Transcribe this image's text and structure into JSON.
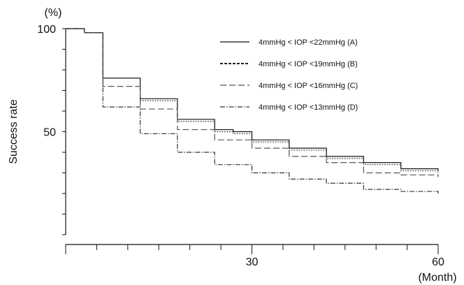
{
  "chart_data": {
    "type": "line",
    "step": true,
    "xlabel": "(Month)",
    "ylabel": "Success rate",
    "yunit": "(%)",
    "xlim": [
      0,
      60
    ],
    "ylim": [
      0,
      100
    ],
    "xticks": [
      0,
      5,
      10,
      15,
      20,
      25,
      30,
      35,
      40,
      45,
      50,
      55,
      60
    ],
    "xtick_labels": [
      "30",
      "60"
    ],
    "xtick_label_values": [
      30,
      60
    ],
    "ytick_labels": [
      "100",
      "50"
    ],
    "ytick_label_values": [
      100,
      50
    ],
    "grid": false,
    "legend_position": "top-right",
    "series": [
      {
        "name": "4mmHg < IOP <22mmHg (A)",
        "style": "solid",
        "x": [
          0,
          3,
          6,
          12,
          18,
          24,
          27,
          30,
          36,
          42,
          48,
          54,
          60
        ],
        "y": [
          100,
          98,
          76,
          66,
          56,
          51,
          50,
          46,
          42,
          38,
          35,
          32,
          31
        ]
      },
      {
        "name": "4mmHg < IOP <19mmHg (B)",
        "style": "dotted",
        "x": [
          0,
          3,
          6,
          12,
          18,
          24,
          27,
          30,
          36,
          42,
          48,
          54,
          60
        ],
        "y": [
          100,
          98,
          76,
          65,
          55,
          50,
          49,
          45,
          41,
          37,
          34,
          31,
          30
        ]
      },
      {
        "name": "4mmHg < IOP <16mmHg (C)",
        "style": "dashed",
        "x": [
          0,
          3,
          6,
          12,
          18,
          24,
          30,
          36,
          42,
          48,
          54,
          60
        ],
        "y": [
          100,
          98,
          72,
          61,
          51,
          46,
          42,
          38,
          35,
          30,
          29,
          28
        ]
      },
      {
        "name": "4mmHg < IOP <13mmHg (D)",
        "style": "dashdot",
        "x": [
          0,
          3,
          6,
          12,
          18,
          24,
          30,
          36,
          42,
          48,
          54,
          60
        ],
        "y": [
          100,
          98,
          62,
          49,
          40,
          34,
          30,
          27,
          25,
          22,
          21,
          20
        ]
      }
    ]
  }
}
